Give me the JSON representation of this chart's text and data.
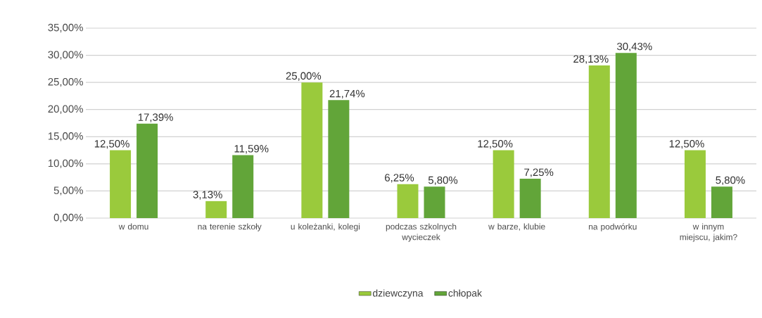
{
  "chart_data": {
    "type": "bar",
    "categories": [
      "w domu",
      "na terenie szkoły",
      "u koleżanki, kolegi",
      "podczas szkolnych wycieczek",
      "w barze, klubie",
      "na podwórku",
      "w innym miejscu, jakim?"
    ],
    "series": [
      {
        "name": "dziewczyna",
        "color": "#9aca3c",
        "values": [
          12.5,
          3.13,
          25.0,
          6.25,
          12.5,
          28.13,
          12.5
        ],
        "value_labels": [
          "12,50%",
          "3,13%",
          "25,00%",
          "6,25%",
          "12,50%",
          "28,13%",
          "12,50%"
        ]
      },
      {
        "name": "chłopak",
        "color": "#62a539",
        "values": [
          17.39,
          11.59,
          21.74,
          5.8,
          7.25,
          30.43,
          5.8
        ],
        "value_labels": [
          "17,39%",
          "11,59%",
          "21,74%",
          "5,80%",
          "7,25%",
          "30,43%",
          "5,80%"
        ]
      }
    ],
    "ylim": [
      0,
      35
    ],
    "yticks": [
      {
        "value": 0,
        "label": "0,00%"
      },
      {
        "value": 5,
        "label": "5,00%"
      },
      {
        "value": 10,
        "label": "10,00%"
      },
      {
        "value": 15,
        "label": "15,00%"
      },
      {
        "value": 20,
        "label": "20,00%"
      },
      {
        "value": 25,
        "label": "25,00%"
      },
      {
        "value": 30,
        "label": "30,00%"
      },
      {
        "value": 35,
        "label": "35,00%"
      }
    ],
    "grid": "y",
    "legend": "bottom"
  }
}
